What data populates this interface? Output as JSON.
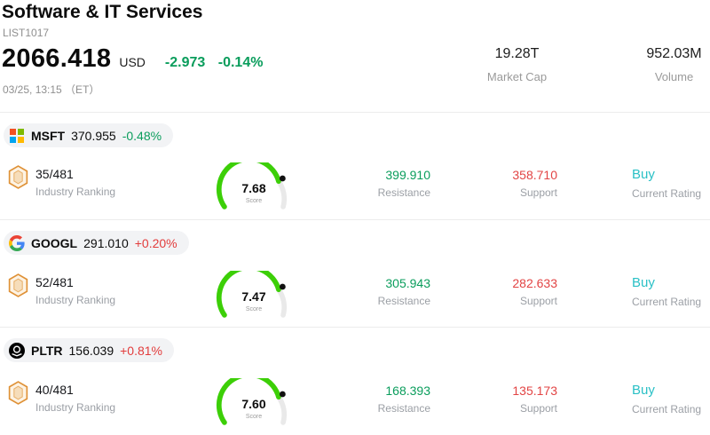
{
  "colors": {
    "up": "#e23c3c",
    "down": "#0a9d5c",
    "rating": "#2ac0c6"
  },
  "header": {
    "title": "Software & IT Services",
    "list_id": "LIST1017",
    "price": "2066.418",
    "currency": "USD",
    "change_value": "-2.973",
    "change_pct": "-0.14%",
    "change_direction": "down",
    "datetime": "03/25, 13:15 （ET）",
    "market_cap": {
      "value": "19.28T",
      "label": "Market Cap"
    },
    "volume": {
      "value": "952.03M",
      "label": "Volume"
    }
  },
  "labels": {
    "industry_ranking": "Industry Ranking",
    "resistance": "Resistance",
    "support": "Support",
    "current_rating": "Current Rating",
    "score": "Score"
  },
  "stocks": [
    {
      "ticker": "MSFT",
      "price": "370.955",
      "change": "-0.48%",
      "direction": "down",
      "logo": "microsoft-logo",
      "ranking": "35/481",
      "score": "7.68",
      "resistance": "399.910",
      "support": "358.710",
      "rating": "Buy"
    },
    {
      "ticker": "GOOGL",
      "price": "291.010",
      "change": "+0.20%",
      "direction": "up",
      "logo": "google-logo",
      "ranking": "52/481",
      "score": "7.47",
      "resistance": "305.943",
      "support": "282.633",
      "rating": "Buy"
    },
    {
      "ticker": "PLTR",
      "price": "156.039",
      "change": "+0.81%",
      "direction": "up",
      "logo": "palantir-logo",
      "ranking": "40/481",
      "score": "7.60",
      "resistance": "168.393",
      "support": "135.173",
      "rating": "Buy"
    }
  ]
}
